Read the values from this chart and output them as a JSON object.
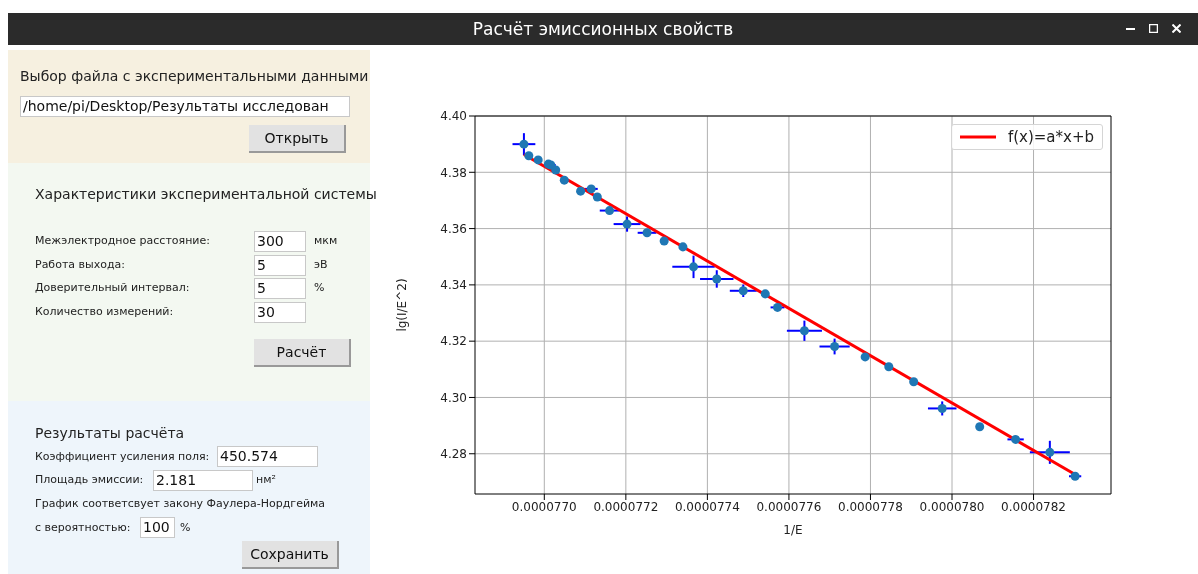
{
  "chart_data": [
    {
      "type": "other",
      "title": "Расчёт эмиссионных свойств",
      "annotations": [
        "Выбор файла с экспериментальными данными",
        "/home/pi/Desktop/Результаты исследован",
        "Открыть",
        "Характеристики экспериментальной системы",
        "Межэлектродное расстояние:",
        "300",
        "мкм",
        "Работа выхода:",
        "5",
        "эВ",
        "Доверительный интервал:",
        "5",
        "%",
        "Количество измерений:",
        "30",
        "Расчёт",
        "Результаты расчёта",
        "Коэффициент усиления поля:",
        "450.574",
        "Площадь эмиссии:",
        "2.181",
        "нм²",
        "График соответсвует закону Фаулера-Нордгейма",
        "с вероятностью:",
        "100",
        "%",
        "Сохранить"
      ]
    },
    {
      "type": "scatter",
      "xlabel": "1/E",
      "ylabel": "lg(I/E^2)",
      "x": [
        7.695e-05,
        7.6962e-05,
        7.6985e-05,
        7.701e-05,
        7.7016e-05,
        7.7028e-05,
        7.7049e-05,
        7.7089e-05,
        7.7115e-05,
        7.713e-05,
        7.716e-05,
        7.7203e-05,
        7.7252e-05,
        7.7294e-05,
        7.734e-05,
        7.7366e-05,
        7.7423e-05,
        7.7488e-05,
        7.7542e-05,
        7.7572e-05,
        7.7638e-05,
        7.7712e-05,
        7.7787e-05,
        7.7845e-05,
        7.7906e-05,
        7.7976e-05,
        7.8068e-05,
        7.8156e-05,
        7.824e-05,
        7.8302e-05
      ],
      "series": [
        {
          "type": "scatter",
          "color": "#1f77b4",
          "marker": "circle",
          "values": [
            4.39,
            4.3859,
            4.3844,
            4.3829,
            4.3826,
            4.3808,
            4.3772,
            4.3733,
            4.3741,
            4.3712,
            4.3664,
            4.3616,
            4.3585,
            4.3556,
            4.3535,
            4.3464,
            4.3421,
            4.3379,
            4.3368,
            4.332,
            4.3237,
            4.3181,
            4.3144,
            4.3109,
            4.3056,
            4.2961,
            4.2896,
            4.2851,
            4.2805,
            4.272
          ],
          "errors": [
            0.0039,
            null,
            null,
            null,
            null,
            null,
            null,
            null,
            null,
            null,
            null,
            0.0027,
            null,
            null,
            null,
            0.004,
            0.0031,
            0.0022,
            null,
            null,
            0.0036,
            0.0028,
            null,
            null,
            null,
            0.0025,
            null,
            null,
            0.0041,
            null
          ],
          "xerrors": [
            2.8e-08,
            null,
            null,
            null,
            1.2e-08,
            null,
            null,
            null,
            1.6e-08,
            null,
            2.4e-08,
            3.3e-08,
            2.3e-08,
            null,
            null,
            5.2e-08,
            4.1e-08,
            3.3e-08,
            null,
            1.7e-08,
            4.3e-08,
            3.7e-08,
            null,
            null,
            null,
            3.5e-08,
            null,
            2e-08,
            4.9e-08,
            1.5e-08
          ]
        },
        {
          "type": "line",
          "name": "f(x)=a*x+b",
          "color": "#ff0000",
          "x": [
            7.695e-05,
            7.83e-05
          ],
          "values": [
            4.3863,
            4.2728
          ]
        }
      ],
      "xlim": [
        7.683e-05,
        7.839e-05
      ],
      "ylim": [
        4.2657,
        4.4
      ],
      "xticks": [
        {
          "value": 7.7e-05,
          "label": "0.0000770"
        },
        {
          "value": 7.72e-05,
          "label": "0.0000772"
        },
        {
          "value": 7.74e-05,
          "label": "0.0000774"
        },
        {
          "value": 7.76e-05,
          "label": "0.0000776"
        },
        {
          "value": 7.78e-05,
          "label": "0.0000778"
        },
        {
          "value": 7.8e-05,
          "label": "0.0000780"
        },
        {
          "value": 7.82e-05,
          "label": "0.0000782"
        }
      ],
      "yticks": [
        4.28,
        {
          "value": 4.3,
          "label": "4.30"
        },
        4.32,
        4.34,
        4.36,
        4.38,
        {
          "value": 4.4,
          "label": "4.40"
        }
      ],
      "grid": true,
      "legend": "top right"
    }
  ]
}
